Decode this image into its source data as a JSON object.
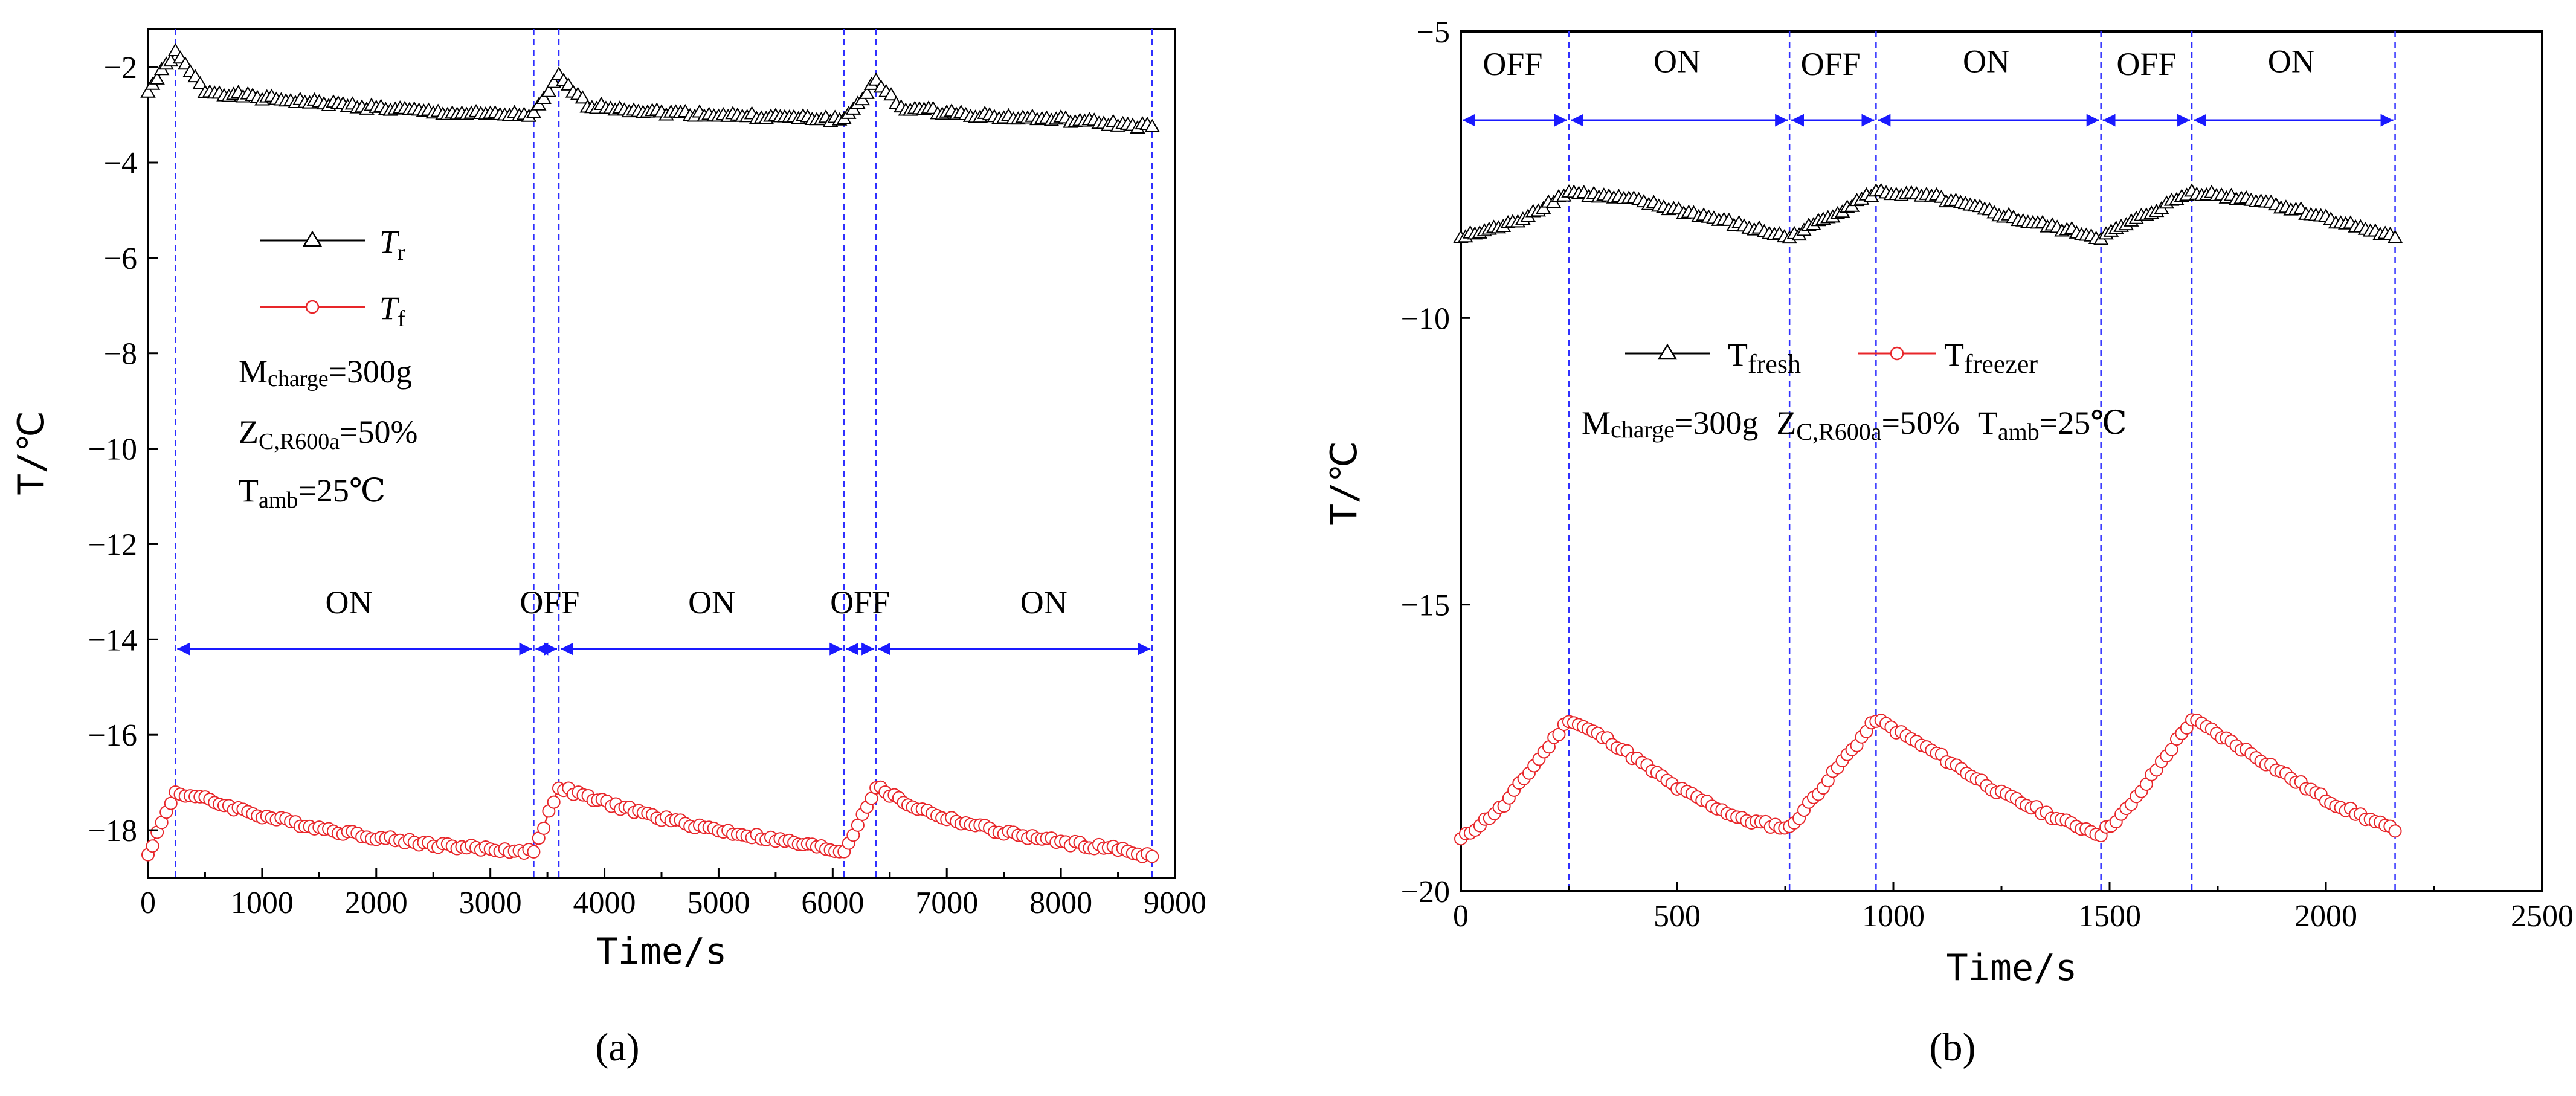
{
  "chart_data": [
    {
      "type": "line",
      "panel_label": "(a)",
      "xlabel": "Time/s",
      "ylabel": "T/℃",
      "xlim": [
        0,
        9000
      ],
      "ylim": [
        -19,
        -1.2
      ],
      "xticks": [
        0,
        1000,
        2000,
        3000,
        4000,
        5000,
        6000,
        7000,
        8000,
        9000
      ],
      "yticks": [
        -2,
        -4,
        -6,
        -8,
        -10,
        -12,
        -14,
        -16,
        -18
      ],
      "legend": {
        "placement": "center-left",
        "sym": "T",
        "sub_r": "r",
        "sub_f": "f"
      },
      "conditions": {
        "m_prefix": "M",
        "m_sub": "charge",
        "m_val": "=300g",
        "z_prefix": "Z",
        "z_sub": "C,R600a",
        "z_val": "=50%",
        "t_prefix": "T",
        "t_sub": "amb",
        "t_val": "=25℃"
      },
      "boundaries": [
        240,
        3380,
        3600,
        6100,
        6380,
        8800
      ],
      "arrow_y": -14.2,
      "state_labels": [
        {
          "text": "ON",
          "x": 1760,
          "y": -13.2
        },
        {
          "text": "OFF",
          "x": 3520,
          "y": -13.2
        },
        {
          "text": "ON",
          "x": 4940,
          "y": -13.2
        },
        {
          "text": "OFF",
          "x": 6240,
          "y": -13.2
        },
        {
          "text": "ON",
          "x": 7850,
          "y": -13.2
        }
      ],
      "series": [
        {
          "name": "Tr",
          "color": "#000000",
          "marker": "triangle",
          "points": [
            [
              0,
              -2.5
            ],
            [
              240,
              -1.7
            ],
            [
              500,
              -2.5
            ],
            [
              1000,
              -2.65
            ],
            [
              1500,
              -2.75
            ],
            [
              2000,
              -2.85
            ],
            [
              2500,
              -2.95
            ],
            [
              3000,
              -3.0
            ],
            [
              3380,
              -3.0
            ],
            [
              3600,
              -2.2
            ],
            [
              3850,
              -2.8
            ],
            [
              4500,
              -2.95
            ],
            [
              5000,
              -3.0
            ],
            [
              5500,
              -3.05
            ],
            [
              6100,
              -3.1
            ],
            [
              6380,
              -2.3
            ],
            [
              6600,
              -2.85
            ],
            [
              7000,
              -2.95
            ],
            [
              7500,
              -3.05
            ],
            [
              8000,
              -3.1
            ],
            [
              8500,
              -3.2
            ],
            [
              8800,
              -3.25
            ]
          ]
        },
        {
          "name": "Tf",
          "color": "#e8262a",
          "marker": "circle",
          "points": [
            [
              0,
              -18.5
            ],
            [
              240,
              -17.2
            ],
            [
              500,
              -17.35
            ],
            [
              1000,
              -17.7
            ],
            [
              1500,
              -17.95
            ],
            [
              2000,
              -18.15
            ],
            [
              2500,
              -18.3
            ],
            [
              3000,
              -18.4
            ],
            [
              3380,
              -18.45
            ],
            [
              3600,
              -17.1
            ],
            [
              3900,
              -17.35
            ],
            [
              4500,
              -17.75
            ],
            [
              5000,
              -18.0
            ],
            [
              5500,
              -18.2
            ],
            [
              6100,
              -18.45
            ],
            [
              6380,
              -17.1
            ],
            [
              6700,
              -17.5
            ],
            [
              7000,
              -17.75
            ],
            [
              7500,
              -18.05
            ],
            [
              8000,
              -18.25
            ],
            [
              8500,
              -18.4
            ],
            [
              8800,
              -18.55
            ]
          ]
        }
      ]
    },
    {
      "type": "line",
      "panel_label": "(b)",
      "xlabel": "Time/s",
      "ylabel": "T/℃",
      "xlim": [
        0,
        2500
      ],
      "ylim": [
        -20,
        -5
      ],
      "xticks": [
        0,
        500,
        1000,
        1500,
        2000,
        2500
      ],
      "yticks": [
        -5,
        -10,
        -15,
        -20
      ],
      "legend": {
        "placement": "top-center",
        "sym": "T",
        "sub_fresh": "fresh",
        "sub_freezer": "freezer"
      },
      "conditions": {
        "m_prefix": "M",
        "m_sub": "charge",
        "m_val": "=300g",
        "z_prefix": "Z",
        "z_sub": "C,R600a",
        "z_val": "=50%",
        "t_prefix": "T",
        "t_sub": "amb",
        "t_val": "=25℃"
      },
      "boundaries": [
        0,
        250,
        760,
        960,
        1480,
        1690,
        2160
      ],
      "arrow_y": -6.55,
      "state_labels": [
        {
          "text": "OFF",
          "x": 120,
          "y": -5.55
        },
        {
          "text": "ON",
          "x": 500,
          "y": -5.5
        },
        {
          "text": "OFF",
          "x": 855,
          "y": -5.55
        },
        {
          "text": "ON",
          "x": 1215,
          "y": -5.5
        },
        {
          "text": "OFF",
          "x": 1585,
          "y": -5.55
        },
        {
          "text": "ON",
          "x": 1920,
          "y": -5.5
        }
      ],
      "series": [
        {
          "name": "Tfresh",
          "color": "#000000",
          "marker": "triangle",
          "points": [
            [
              0,
              -8.6
            ],
            [
              120,
              -8.35
            ],
            [
              250,
              -7.8
            ],
            [
              400,
              -7.95
            ],
            [
              550,
              -8.2
            ],
            [
              760,
              -8.6
            ],
            [
              960,
              -7.8
            ],
            [
              1100,
              -7.9
            ],
            [
              1300,
              -8.3
            ],
            [
              1480,
              -8.6
            ],
            [
              1690,
              -7.8
            ],
            [
              1850,
              -7.95
            ],
            [
              2000,
              -8.25
            ],
            [
              2160,
              -8.6
            ]
          ]
        },
        {
          "name": "Tfreezer",
          "color": "#e8262a",
          "marker": "circle",
          "points": [
            [
              0,
              -19.1
            ],
            [
              100,
              -18.5
            ],
            [
              250,
              -17.0
            ],
            [
              350,
              -17.4
            ],
            [
              500,
              -18.2
            ],
            [
              650,
              -18.75
            ],
            [
              760,
              -18.9
            ],
            [
              960,
              -17.0
            ],
            [
              1100,
              -17.6
            ],
            [
              1250,
              -18.3
            ],
            [
              1400,
              -18.8
            ],
            [
              1480,
              -19.0
            ],
            [
              1550,
              -18.5
            ],
            [
              1690,
              -17.0
            ],
            [
              1850,
              -17.7
            ],
            [
              2000,
              -18.4
            ],
            [
              2160,
              -18.95
            ]
          ]
        }
      ]
    }
  ]
}
